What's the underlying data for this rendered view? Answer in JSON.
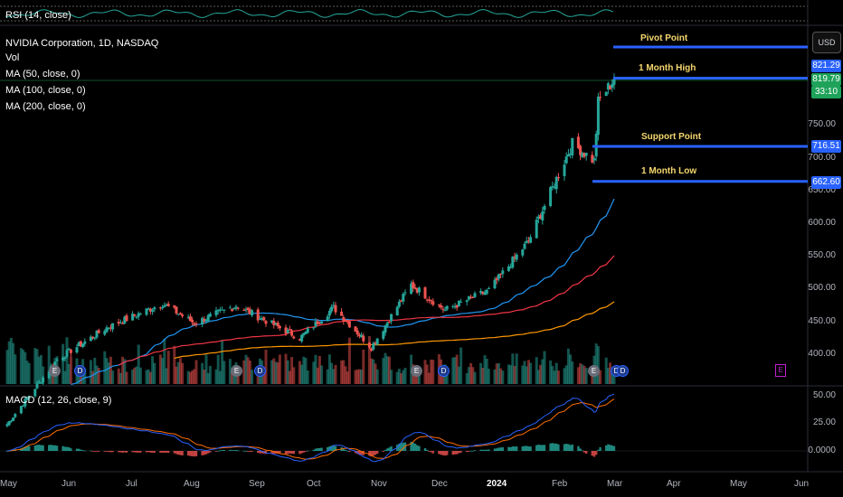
{
  "currency": "USD",
  "rsi": {
    "label": "RSI (14, close)"
  },
  "main_pane": {
    "legend": [
      "NVIDIA Corporation, 1D, NASDAQ",
      "Vol",
      "MA (50, close, 0)",
      "MA (100, close, 0)",
      "MA (200, close, 0)"
    ],
    "price_axis_ticks": [
      "750.00",
      "700.00",
      "650.00",
      "600.00",
      "550.00",
      "500.00",
      "450.00",
      "400.00"
    ],
    "price_tags": {
      "pivot": "821.29",
      "last": "819.79",
      "countdown": "33:10",
      "support": "716.51",
      "low": "662.60"
    },
    "levels": {
      "pivot_label": "Pivot Point",
      "high_label": "1 Month High",
      "support_label": "Support Point",
      "low_label": "1 Month Low"
    },
    "events": [
      "E",
      "D",
      "E",
      "D",
      "E",
      "D",
      "E",
      "D",
      "E",
      "D",
      "E"
    ]
  },
  "macd": {
    "label": "MACD (12, 26, close, 9)",
    "axis_ticks": [
      "50.00",
      "25.00",
      "0.0000"
    ]
  },
  "time_axis": [
    "May",
    "Jun",
    "Jul",
    "Aug",
    "Sep",
    "Oct",
    "Nov",
    "Dec",
    "2024",
    "Feb",
    "Mar",
    "Apr",
    "May",
    "Jun"
  ],
  "colors": {
    "up": "#26a69a",
    "down": "#ef5350",
    "level_line": "#2962ff",
    "ma50": "#2196f3",
    "ma100": "#f23645",
    "ma200": "#ff9800",
    "macd_line": "#2962ff",
    "signal_line": "#ff6d00",
    "label_yellow": "#f5d76e"
  },
  "chart_data": {
    "type": "candlestick",
    "symbol": "NVIDIA Corporation, 1D, NASDAQ",
    "y_range": [
      380,
      850
    ],
    "anchor_closes": [
      {
        "date": "2023-05-01",
        "close": 290
      },
      {
        "date": "2023-05-26",
        "close": 389
      },
      {
        "date": "2023-06-20",
        "close": 438
      },
      {
        "date": "2023-07-18",
        "close": 475
      },
      {
        "date": "2023-08-03",
        "close": 445
      },
      {
        "date": "2023-08-24",
        "close": 472
      },
      {
        "date": "2023-09-25",
        "close": 422
      },
      {
        "date": "2023-10-12",
        "close": 469
      },
      {
        "date": "2023-10-31",
        "close": 408
      },
      {
        "date": "2023-11-20",
        "close": 504
      },
      {
        "date": "2023-12-07",
        "close": 465
      },
      {
        "date": "2023-12-29",
        "close": 495
      },
      {
        "date": "2024-01-18",
        "close": 571
      },
      {
        "date": "2024-02-09",
        "close": 721
      },
      {
        "date": "2024-02-20",
        "close": 694
      },
      {
        "date": "2024-02-22",
        "close": 785
      },
      {
        "date": "2024-03-01",
        "close": 819.79
      }
    ],
    "levels": [
      {
        "name": "Pivot Point",
        "value": 821.29
      },
      {
        "name": "1 Month High",
        "value": 821.29
      },
      {
        "name": "Support Point",
        "value": 716.51
      },
      {
        "name": "1 Month Low",
        "value": 662.6
      }
    ],
    "macd_range": [
      -20,
      55
    ]
  }
}
